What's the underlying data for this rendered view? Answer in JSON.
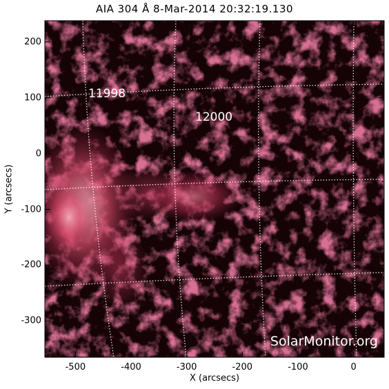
{
  "header": {
    "title": "AIA 304 Å  8-Mar-2014 20:32:19.130"
  },
  "regions": [
    {
      "label": "11998"
    },
    {
      "label": "12000"
    }
  ],
  "credit": "SolarMonitor.org",
  "axes": {
    "xlabel": "X (arcsecs)",
    "ylabel": "Y (arcsecs)",
    "xticks": [
      "-500",
      "-400",
      "-300",
      "-200",
      "-100",
      "0"
    ],
    "yticks": [
      "200",
      "100",
      "0",
      "-100",
      "-200",
      "-300"
    ],
    "xlim": [
      -555,
      55
    ],
    "ylim": [
      -365,
      238
    ]
  },
  "colors": {
    "plasma": "#b0284c",
    "background": "#160306"
  }
}
